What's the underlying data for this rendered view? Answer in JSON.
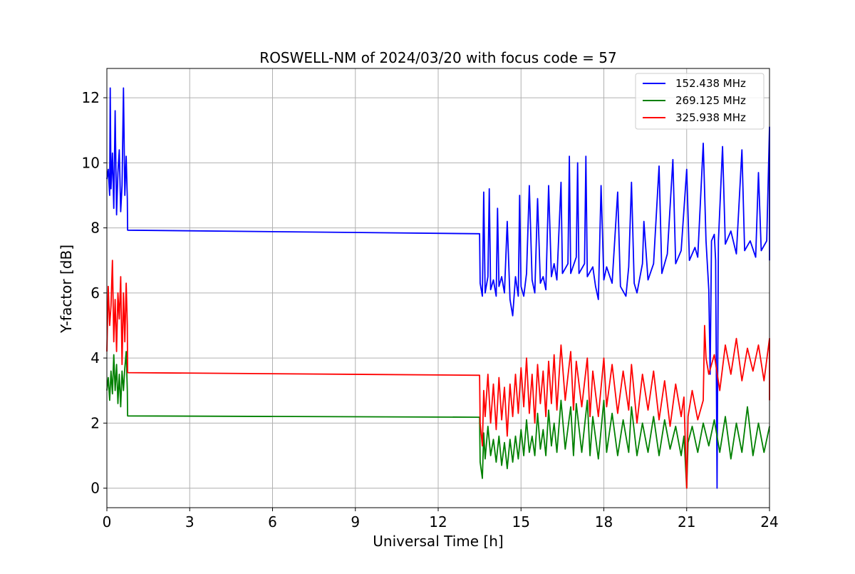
{
  "chart_data": {
    "type": "line",
    "title": "ROSWELL-NM of 2024/03/20 with focus code = 57",
    "xlabel": "Universal Time [h]",
    "ylabel": "Y-factor [dB]",
    "xlim": [
      0,
      24
    ],
    "ylim": [
      -0.6,
      12.9
    ],
    "xticks": [
      0,
      3,
      6,
      9,
      12,
      15,
      18,
      21,
      24
    ],
    "yticks": [
      0,
      2,
      4,
      6,
      8,
      10,
      12
    ],
    "grid": true,
    "legend_position": "top-right",
    "series": [
      {
        "name": "152.438 MHz",
        "color": "#0000ff",
        "points": [
          [
            0.0,
            9.5
          ],
          [
            0.05,
            9.8
          ],
          [
            0.1,
            9.0
          ],
          [
            0.12,
            12.3
          ],
          [
            0.15,
            9.2
          ],
          [
            0.2,
            10.3
          ],
          [
            0.25,
            8.6
          ],
          [
            0.3,
            11.6
          ],
          [
            0.35,
            8.4
          ],
          [
            0.4,
            9.7
          ],
          [
            0.45,
            10.4
          ],
          [
            0.5,
            8.5
          ],
          [
            0.55,
            9.3
          ],
          [
            0.6,
            12.3
          ],
          [
            0.65,
            9.0
          ],
          [
            0.7,
            10.2
          ],
          [
            0.74,
            8.9
          ],
          [
            0.75,
            7.93
          ],
          [
            13.5,
            7.82
          ],
          [
            13.52,
            6.3
          ],
          [
            13.6,
            5.9
          ],
          [
            13.65,
            9.1
          ],
          [
            13.7,
            6.0
          ],
          [
            13.8,
            6.5
          ],
          [
            13.85,
            9.2
          ],
          [
            13.9,
            6.1
          ],
          [
            14.0,
            6.4
          ],
          [
            14.1,
            5.9
          ],
          [
            14.15,
            8.6
          ],
          [
            14.2,
            6.2
          ],
          [
            14.3,
            6.5
          ],
          [
            14.4,
            6.0
          ],
          [
            14.5,
            8.2
          ],
          [
            14.6,
            5.8
          ],
          [
            14.7,
            5.3
          ],
          [
            14.8,
            6.5
          ],
          [
            14.9,
            5.9
          ],
          [
            14.95,
            9.0
          ],
          [
            15.0,
            6.2
          ],
          [
            15.1,
            5.9
          ],
          [
            15.2,
            6.6
          ],
          [
            15.3,
            9.3
          ],
          [
            15.4,
            6.4
          ],
          [
            15.5,
            6.0
          ],
          [
            15.6,
            8.9
          ],
          [
            15.7,
            6.3
          ],
          [
            15.8,
            6.5
          ],
          [
            15.9,
            6.1
          ],
          [
            16.0,
            9.3
          ],
          [
            16.1,
            6.5
          ],
          [
            16.2,
            6.9
          ],
          [
            16.3,
            6.4
          ],
          [
            16.45,
            9.4
          ],
          [
            16.5,
            6.6
          ],
          [
            16.7,
            6.9
          ],
          [
            16.75,
            10.2
          ],
          [
            16.8,
            6.6
          ],
          [
            17.0,
            7.1
          ],
          [
            17.05,
            10.0
          ],
          [
            17.1,
            6.6
          ],
          [
            17.3,
            6.9
          ],
          [
            17.35,
            10.2
          ],
          [
            17.4,
            6.5
          ],
          [
            17.6,
            6.8
          ],
          [
            17.7,
            6.2
          ],
          [
            17.8,
            5.8
          ],
          [
            17.9,
            9.3
          ],
          [
            18.0,
            6.4
          ],
          [
            18.1,
            6.8
          ],
          [
            18.3,
            6.3
          ],
          [
            18.5,
            9.1
          ],
          [
            18.6,
            6.2
          ],
          [
            18.8,
            5.9
          ],
          [
            18.9,
            6.8
          ],
          [
            19.0,
            9.4
          ],
          [
            19.1,
            6.3
          ],
          [
            19.2,
            6.0
          ],
          [
            19.4,
            6.9
          ],
          [
            19.45,
            8.2
          ],
          [
            19.6,
            6.4
          ],
          [
            19.8,
            6.9
          ],
          [
            20.0,
            9.9
          ],
          [
            20.1,
            6.6
          ],
          [
            20.3,
            7.2
          ],
          [
            20.5,
            10.1
          ],
          [
            20.6,
            6.9
          ],
          [
            20.8,
            7.3
          ],
          [
            21.0,
            9.8
          ],
          [
            21.1,
            7.0
          ],
          [
            21.3,
            7.4
          ],
          [
            21.4,
            7.1
          ],
          [
            21.6,
            10.6
          ],
          [
            21.7,
            7.6
          ],
          [
            21.8,
            6.1
          ],
          [
            21.85,
            3.5
          ],
          [
            21.9,
            7.6
          ],
          [
            22.0,
            7.8
          ],
          [
            22.05,
            7.0
          ],
          [
            22.1,
            0.0
          ],
          [
            22.15,
            7.6
          ],
          [
            22.3,
            10.5
          ],
          [
            22.4,
            7.5
          ],
          [
            22.6,
            7.9
          ],
          [
            22.8,
            7.2
          ],
          [
            23.0,
            10.4
          ],
          [
            23.1,
            7.3
          ],
          [
            23.3,
            7.6
          ],
          [
            23.5,
            7.1
          ],
          [
            23.6,
            9.7
          ],
          [
            23.7,
            7.3
          ],
          [
            23.9,
            7.6
          ],
          [
            24.0,
            11.1
          ],
          [
            24.0,
            7.0
          ]
        ]
      },
      {
        "name": "269.125 MHz",
        "color": "#008000",
        "points": [
          [
            0.0,
            3.0
          ],
          [
            0.05,
            3.4
          ],
          [
            0.1,
            2.7
          ],
          [
            0.15,
            3.6
          ],
          [
            0.2,
            2.9
          ],
          [
            0.25,
            4.1
          ],
          [
            0.3,
            3.0
          ],
          [
            0.35,
            3.8
          ],
          [
            0.4,
            2.6
          ],
          [
            0.45,
            3.5
          ],
          [
            0.5,
            2.5
          ],
          [
            0.55,
            3.6
          ],
          [
            0.6,
            3.0
          ],
          [
            0.65,
            3.7
          ],
          [
            0.7,
            4.2
          ],
          [
            0.74,
            3.0
          ],
          [
            0.75,
            2.22
          ],
          [
            13.5,
            2.18
          ],
          [
            13.52,
            0.8
          ],
          [
            13.6,
            0.3
          ],
          [
            13.65,
            1.7
          ],
          [
            13.7,
            0.9
          ],
          [
            13.8,
            1.9
          ],
          [
            13.9,
            1.0
          ],
          [
            14.0,
            1.5
          ],
          [
            14.1,
            0.8
          ],
          [
            14.2,
            1.6
          ],
          [
            14.3,
            0.7
          ],
          [
            14.4,
            1.4
          ],
          [
            14.5,
            0.6
          ],
          [
            14.6,
            1.5
          ],
          [
            14.7,
            0.8
          ],
          [
            14.8,
            1.6
          ],
          [
            14.9,
            0.9
          ],
          [
            15.0,
            1.8
          ],
          [
            15.1,
            1.0
          ],
          [
            15.2,
            2.1
          ],
          [
            15.3,
            1.1
          ],
          [
            15.4,
            1.6
          ],
          [
            15.5,
            1.0
          ],
          [
            15.6,
            2.3
          ],
          [
            15.7,
            1.2
          ],
          [
            15.8,
            1.8
          ],
          [
            15.9,
            1.0
          ],
          [
            16.0,
            2.4
          ],
          [
            16.1,
            1.3
          ],
          [
            16.2,
            2.0
          ],
          [
            16.3,
            1.1
          ],
          [
            16.45,
            2.7
          ],
          [
            16.6,
            1.2
          ],
          [
            16.8,
            2.5
          ],
          [
            16.9,
            1.0
          ],
          [
            17.0,
            2.6
          ],
          [
            17.2,
            1.1
          ],
          [
            17.4,
            2.7
          ],
          [
            17.5,
            1.0
          ],
          [
            17.6,
            2.2
          ],
          [
            17.8,
            0.9
          ],
          [
            18.0,
            2.7
          ],
          [
            18.1,
            1.1
          ],
          [
            18.3,
            2.3
          ],
          [
            18.5,
            1.0
          ],
          [
            18.7,
            2.1
          ],
          [
            18.9,
            1.1
          ],
          [
            19.0,
            2.5
          ],
          [
            19.2,
            1.0
          ],
          [
            19.4,
            2.0
          ],
          [
            19.6,
            1.1
          ],
          [
            19.8,
            2.2
          ],
          [
            20.0,
            1.0
          ],
          [
            20.2,
            2.1
          ],
          [
            20.4,
            1.2
          ],
          [
            20.6,
            1.9
          ],
          [
            20.8,
            1.0
          ],
          [
            20.9,
            1.6
          ],
          [
            21.0,
            0.0
          ],
          [
            21.05,
            1.4
          ],
          [
            21.2,
            1.9
          ],
          [
            21.4,
            1.1
          ],
          [
            21.6,
            2.0
          ],
          [
            21.8,
            1.3
          ],
          [
            22.0,
            2.1
          ],
          [
            22.2,
            1.1
          ],
          [
            22.4,
            2.2
          ],
          [
            22.6,
            0.9
          ],
          [
            22.8,
            2.0
          ],
          [
            23.0,
            1.1
          ],
          [
            23.2,
            2.5
          ],
          [
            23.4,
            1.0
          ],
          [
            23.6,
            2.0
          ],
          [
            23.8,
            1.1
          ],
          [
            24.0,
            1.9
          ]
        ]
      },
      {
        "name": "325.938 MHz",
        "color": "#ff0000",
        "points": [
          [
            0.0,
            4.2
          ],
          [
            0.05,
            6.2
          ],
          [
            0.1,
            5.0
          ],
          [
            0.15,
            5.6
          ],
          [
            0.2,
            7.0
          ],
          [
            0.25,
            4.5
          ],
          [
            0.3,
            5.8
          ],
          [
            0.35,
            4.2
          ],
          [
            0.4,
            6.0
          ],
          [
            0.45,
            5.2
          ],
          [
            0.5,
            6.5
          ],
          [
            0.55,
            3.8
          ],
          [
            0.6,
            6.0
          ],
          [
            0.65,
            4.5
          ],
          [
            0.7,
            6.3
          ],
          [
            0.74,
            5.0
          ],
          [
            0.75,
            3.55
          ],
          [
            13.5,
            3.47
          ],
          [
            13.52,
            2.0
          ],
          [
            13.6,
            1.3
          ],
          [
            13.65,
            3.0
          ],
          [
            13.7,
            2.2
          ],
          [
            13.8,
            3.5
          ],
          [
            13.9,
            2.0
          ],
          [
            14.0,
            3.2
          ],
          [
            14.1,
            1.8
          ],
          [
            14.2,
            3.4
          ],
          [
            14.3,
            2.1
          ],
          [
            14.4,
            3.1
          ],
          [
            14.5,
            1.6
          ],
          [
            14.6,
            3.2
          ],
          [
            14.7,
            2.2
          ],
          [
            14.8,
            3.5
          ],
          [
            14.9,
            2.3
          ],
          [
            15.0,
            3.7
          ],
          [
            15.1,
            2.5
          ],
          [
            15.2,
            4.0
          ],
          [
            15.3,
            2.3
          ],
          [
            15.4,
            3.5
          ],
          [
            15.5,
            2.0
          ],
          [
            15.6,
            3.8
          ],
          [
            15.7,
            2.6
          ],
          [
            15.8,
            3.6
          ],
          [
            15.9,
            2.2
          ],
          [
            16.0,
            3.9
          ],
          [
            16.1,
            2.6
          ],
          [
            16.2,
            4.1
          ],
          [
            16.3,
            2.4
          ],
          [
            16.45,
            4.4
          ],
          [
            16.6,
            2.7
          ],
          [
            16.8,
            4.2
          ],
          [
            16.9,
            2.4
          ],
          [
            17.0,
            3.9
          ],
          [
            17.2,
            2.5
          ],
          [
            17.4,
            4.0
          ],
          [
            17.5,
            2.2
          ],
          [
            17.6,
            3.6
          ],
          [
            17.8,
            2.2
          ],
          [
            18.0,
            4.0
          ],
          [
            18.1,
            2.5
          ],
          [
            18.3,
            3.8
          ],
          [
            18.5,
            2.3
          ],
          [
            18.7,
            3.6
          ],
          [
            18.9,
            2.4
          ],
          [
            19.0,
            3.8
          ],
          [
            19.2,
            2.0
          ],
          [
            19.4,
            3.5
          ],
          [
            19.6,
            2.4
          ],
          [
            19.8,
            3.6
          ],
          [
            20.0,
            2.1
          ],
          [
            20.2,
            3.3
          ],
          [
            20.4,
            1.9
          ],
          [
            20.6,
            3.2
          ],
          [
            20.8,
            2.2
          ],
          [
            20.9,
            2.8
          ],
          [
            21.0,
            0.0
          ],
          [
            21.05,
            2.2
          ],
          [
            21.2,
            3.0
          ],
          [
            21.4,
            2.1
          ],
          [
            21.6,
            2.7
          ],
          [
            21.65,
            5.0
          ],
          [
            21.7,
            4.0
          ],
          [
            21.8,
            3.5
          ],
          [
            22.0,
            4.1
          ],
          [
            22.2,
            3.0
          ],
          [
            22.4,
            4.4
          ],
          [
            22.6,
            3.5
          ],
          [
            22.8,
            4.6
          ],
          [
            23.0,
            3.3
          ],
          [
            23.2,
            4.3
          ],
          [
            23.4,
            3.6
          ],
          [
            23.6,
            4.4
          ],
          [
            23.8,
            3.3
          ],
          [
            24.0,
            4.6
          ],
          [
            24.0,
            2.7
          ]
        ]
      }
    ]
  }
}
